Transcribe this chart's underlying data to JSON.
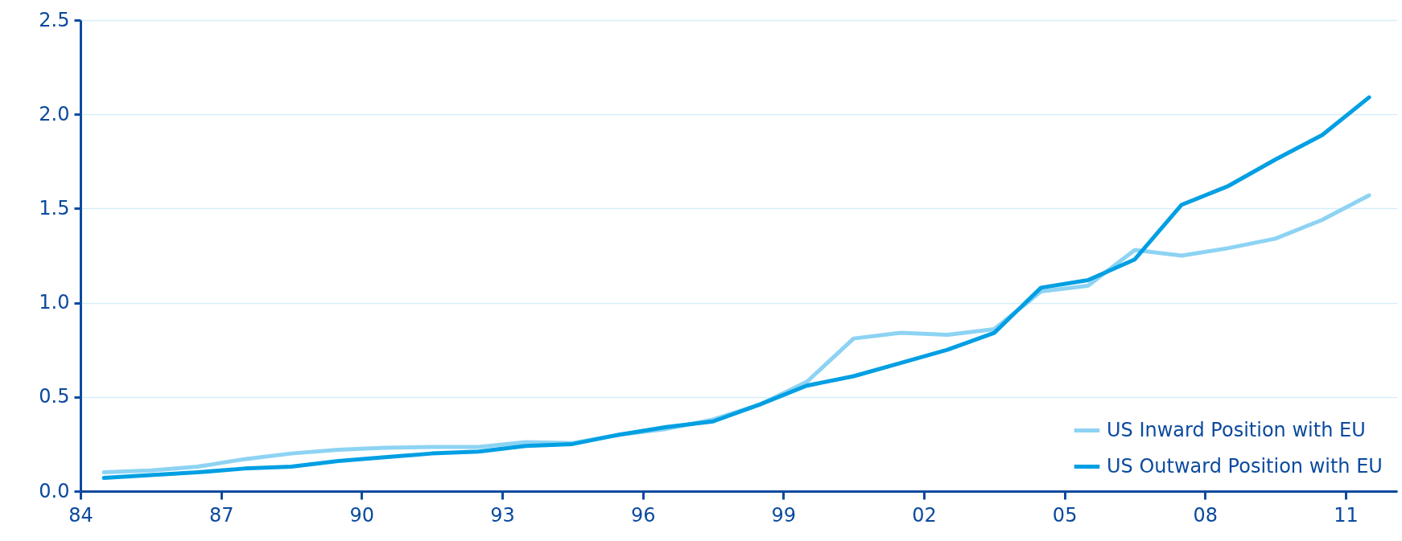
{
  "chart_data": {
    "type": "line",
    "x": [
      1984.5,
      1985.5,
      1986.5,
      1987.5,
      1988.5,
      1989.5,
      1990.5,
      1991.5,
      1992.5,
      1993.5,
      1994.5,
      1995.5,
      1996.5,
      1997.5,
      1998.5,
      1999.5,
      2000.5,
      2001.5,
      2002.5,
      2003.5,
      2004.5,
      2005.5,
      2006.5,
      2007.5,
      2008.5,
      2009.5,
      2010.5,
      2011.5
    ],
    "series": [
      {
        "name": "US Inward Position with EU",
        "color": "#8dd3f3",
        "values": [
          0.1,
          0.11,
          0.13,
          0.17,
          0.2,
          0.22,
          0.23,
          0.235,
          0.235,
          0.26,
          0.255,
          0.3,
          0.33,
          0.38,
          0.46,
          0.58,
          0.81,
          0.84,
          0.83,
          0.86,
          1.06,
          1.09,
          1.28,
          1.25,
          1.29,
          1.34,
          1.44,
          1.57
        ]
      },
      {
        "name": "US Outward Position with EU",
        "color": "#009fe3",
        "values": [
          0.07,
          0.085,
          0.1,
          0.12,
          0.13,
          0.16,
          0.18,
          0.2,
          0.21,
          0.24,
          0.25,
          0.3,
          0.34,
          0.37,
          0.46,
          0.56,
          0.61,
          0.68,
          0.75,
          0.84,
          1.08,
          1.12,
          1.23,
          1.52,
          1.62,
          1.76,
          1.89,
          2.09
        ]
      }
    ],
    "xlim": [
      1984,
      2012.1
    ],
    "xticks": [
      {
        "value": 1984,
        "label": "84"
      },
      {
        "value": 1987,
        "label": "87"
      },
      {
        "value": 1990,
        "label": "90"
      },
      {
        "value": 1993,
        "label": "93"
      },
      {
        "value": 1996,
        "label": "96"
      },
      {
        "value": 1999,
        "label": "99"
      },
      {
        "value": 2002,
        "label": "02"
      },
      {
        "value": 2005,
        "label": "05"
      },
      {
        "value": 2008,
        "label": "08"
      },
      {
        "value": 2011,
        "label": "11"
      }
    ],
    "ylim": [
      0,
      2.5
    ],
    "yticks": [
      {
        "value": 0,
        "label": "0.0"
      },
      {
        "value": 0.5,
        "label": "0.5"
      },
      {
        "value": 1,
        "label": "1.0"
      },
      {
        "value": 1.5,
        "label": "1.5"
      },
      {
        "value": 2,
        "label": "2.0"
      },
      {
        "value": 2.5,
        "label": "2.5"
      }
    ],
    "grid": "y",
    "legend": "bottom right"
  }
}
